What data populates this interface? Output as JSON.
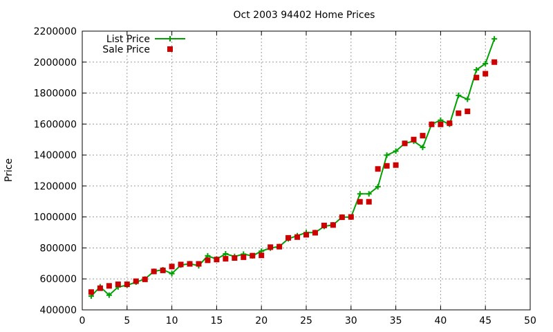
{
  "chart_data": {
    "type": "line",
    "title": "Oct 2003 94402 Home Prices",
    "xlabel": "",
    "ylabel": "Price",
    "xlim": [
      0,
      50
    ],
    "ylim": [
      400000,
      2200000
    ],
    "x_ticks": [
      0,
      5,
      10,
      15,
      20,
      25,
      30,
      35,
      40,
      45,
      50
    ],
    "y_ticks": [
      400000,
      600000,
      800000,
      1000000,
      1200000,
      1400000,
      1600000,
      1800000,
      2000000,
      2200000
    ],
    "x_tick_labels": [
      "0",
      "5",
      "10",
      "15",
      "20",
      "25",
      "30",
      "35",
      "40",
      "45",
      "50"
    ],
    "y_tick_labels": [
      "400000",
      "600000",
      "800000",
      "1000000",
      "1200000",
      "1400000",
      "1600000",
      "1800000",
      "2000000",
      "2200000"
    ],
    "grid": true,
    "legend_position": "top-left",
    "colors": {
      "list_price": "#00a000",
      "sale_price": "#cc0000"
    },
    "series": [
      {
        "name": "List Price",
        "style": "lines+points",
        "marker": "plus",
        "x": [
          1,
          2,
          3,
          4,
          5,
          6,
          7,
          8,
          9,
          10,
          11,
          12,
          13,
          14,
          15,
          16,
          17,
          18,
          19,
          20,
          21,
          22,
          23,
          24,
          25,
          26,
          27,
          28,
          29,
          30,
          31,
          32,
          33,
          34,
          35,
          36,
          37,
          38,
          39,
          40,
          41,
          42,
          43,
          44,
          45,
          46
        ],
        "values": [
          489000,
          549000,
          495000,
          548000,
          559000,
          579000,
          599000,
          649000,
          659000,
          634000,
          689000,
          698000,
          685000,
          749000,
          728000,
          762000,
          745000,
          760000,
          749000,
          779000,
          799000,
          809000,
          859000,
          879000,
          899000,
          899000,
          939000,
          949000,
          999000,
          999000,
          1149000,
          1149000,
          1195000,
          1399000,
          1425000,
          1475000,
          1489000,
          1449000,
          1599000,
          1625000,
          1599000,
          1785000,
          1760000,
          1950000,
          1990000,
          2150000
        ]
      },
      {
        "name": "Sale Price",
        "style": "points",
        "marker": "square",
        "x": [
          1,
          2,
          3,
          4,
          5,
          6,
          7,
          8,
          9,
          10,
          11,
          12,
          13,
          14,
          15,
          16,
          17,
          18,
          19,
          20,
          21,
          22,
          23,
          24,
          25,
          26,
          27,
          28,
          29,
          30,
          31,
          32,
          33,
          34,
          35,
          36,
          37,
          38,
          39,
          40,
          41,
          42,
          43,
          44,
          45,
          46
        ],
        "values": [
          515000,
          540000,
          555000,
          565000,
          565000,
          585000,
          597000,
          648000,
          655000,
          680000,
          693000,
          697000,
          697000,
          720000,
          725000,
          730000,
          735000,
          740000,
          750000,
          752000,
          805000,
          808000,
          865000,
          870000,
          885000,
          898000,
          945000,
          948000,
          998000,
          1000000,
          1098000,
          1098000,
          1310000,
          1330000,
          1335000,
          1475000,
          1500000,
          1525000,
          1598000,
          1598000,
          1605000,
          1670000,
          1682000,
          1900000,
          1925000,
          2000000
        ]
      }
    ]
  }
}
